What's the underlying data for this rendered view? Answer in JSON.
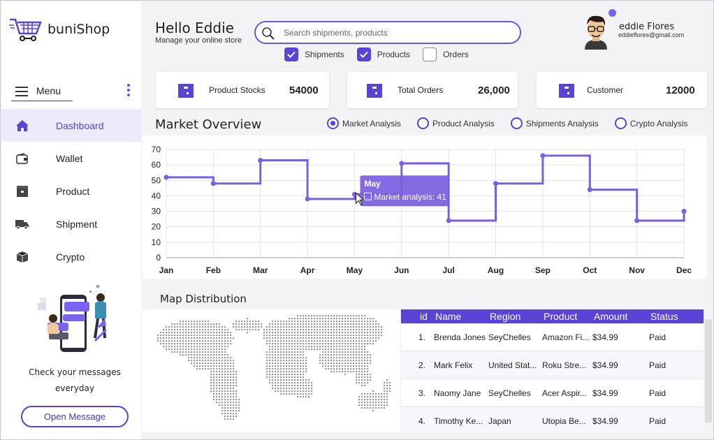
{
  "brand": {
    "name": "buniShop",
    "accent": "#5b43d6"
  },
  "header": {
    "greeting": "Hello Eddie",
    "subtitle": "Manage your online store",
    "search_placeholder": "Search shipments, products",
    "filters": [
      {
        "label": "Shipments",
        "checked": true
      },
      {
        "label": "Products",
        "checked": true
      },
      {
        "label": "Orders",
        "checked": false
      }
    ],
    "user": {
      "name": "eddie Flores",
      "email": "eddieflores@gmail.com"
    }
  },
  "sidebar": {
    "menu_label": "Menu",
    "items": [
      {
        "label": "Dashboard",
        "icon": "home-icon",
        "active": true
      },
      {
        "label": "Wallet",
        "icon": "wallet-icon",
        "active": false
      },
      {
        "label": "Product",
        "icon": "box-icon",
        "active": false
      },
      {
        "label": "Shipment",
        "icon": "truck-icon",
        "active": false
      },
      {
        "label": "Crypto",
        "icon": "cube-icon",
        "active": false
      }
    ],
    "promo_text_1": "Check your messages",
    "promo_text_2": "everyday",
    "open_button": "Open Message"
  },
  "stats": [
    {
      "label": "Product Stocks",
      "value": "54000",
      "icon": "box-icon"
    },
    {
      "label": "Total Orders",
      "value": "26,000",
      "icon": "box-icon"
    },
    {
      "label": "Customer",
      "value": "12000",
      "icon": "box-icon"
    }
  ],
  "market": {
    "title": "Market Overview",
    "tabs": [
      {
        "label": "Market Analysis",
        "selected": true
      },
      {
        "label": "Product Analysis",
        "selected": false
      },
      {
        "label": "Shipments Analysis",
        "selected": false
      },
      {
        "label": "Crypto Analysis",
        "selected": false
      }
    ],
    "tooltip_title": "May",
    "tooltip_value": "Market analysis: 41"
  },
  "chart_data": {
    "type": "line",
    "step": true,
    "categories": [
      "Jan",
      "Feb",
      "Mar",
      "Apr",
      "May",
      "Jun",
      "Jul",
      "Aug",
      "Sep",
      "Oct",
      "Nov",
      "Dec"
    ],
    "series": [
      {
        "name": "Market analysis",
        "values": [
          52,
          48,
          63,
          38,
          41,
          61,
          24,
          48,
          66,
          44,
          24,
          30
        ]
      }
    ],
    "yticks": [
      0,
      10,
      20,
      30,
      40,
      50,
      60,
      70
    ],
    "ylim": [
      0,
      70
    ],
    "grid": true,
    "color": "#7860e0"
  },
  "map": {
    "title": "Map Distribution"
  },
  "table": {
    "columns": [
      "id",
      "Name",
      "Region",
      "Product",
      "Amount",
      "Status"
    ],
    "rows": [
      {
        "id": "1.",
        "name": "Brenda Jones",
        "region": "SeyChelles",
        "product": "Amazon Fi...",
        "amount": "$34.99",
        "status": "Paid"
      },
      {
        "id": "2.",
        "name": "Mark Felix",
        "region": "United Stat...",
        "product": "Roku Stre...",
        "amount": "$34.99",
        "status": "Paid"
      },
      {
        "id": "3.",
        "name": "Naomy Jane",
        "region": "SeyChelles",
        "product": "Acer Aspir...",
        "amount": "$34.99",
        "status": "Paid"
      },
      {
        "id": "4.",
        "name": "Timothy Ke...",
        "region": "Japan",
        "product": "Utopia Be...",
        "amount": "$34.99",
        "status": "Paid"
      }
    ]
  }
}
